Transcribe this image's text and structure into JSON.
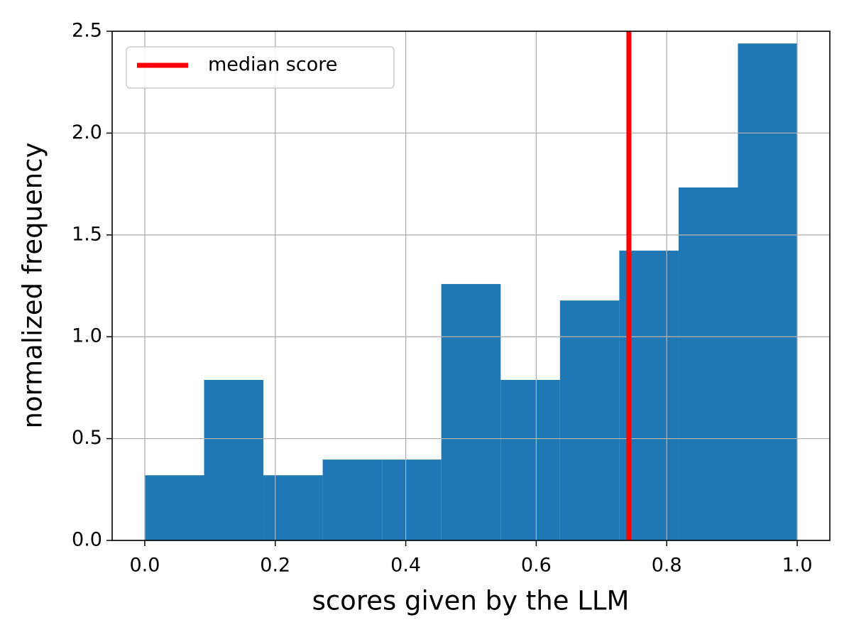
{
  "chart_data": {
    "type": "histogram",
    "xlabel": "scores given by the LLM",
    "ylabel": "normalized frequency",
    "bins": [
      0,
      0.0909,
      0.1818,
      0.2727,
      0.3636,
      0.4545,
      0.5455,
      0.6364,
      0.7273,
      0.8182,
      0.9091,
      1.0
    ],
    "values": [
      0.32,
      0.788,
      0.32,
      0.397,
      0.397,
      1.259,
      0.788,
      1.178,
      1.423,
      1.733,
      2.44
    ],
    "color": "#1f77b4",
    "median": {
      "name": "median score",
      "value": 0.742,
      "color": "#ff0000"
    },
    "xlim": [
      -0.05,
      1.05
    ],
    "ylim": [
      0,
      2.5
    ],
    "xticks": [
      {
        "value": 0,
        "label": "0.0"
      },
      0.2,
      0.4,
      0.6,
      0.8,
      {
        "value": 1,
        "label": "1.0"
      }
    ],
    "yticks": [
      {
        "value": 0,
        "label": "0.0"
      },
      0.5,
      {
        "value": 1,
        "label": "1.0"
      },
      1.5,
      {
        "value": 2,
        "label": "2.0"
      },
      2.5
    ],
    "grid": true,
    "legend": "upper left"
  }
}
